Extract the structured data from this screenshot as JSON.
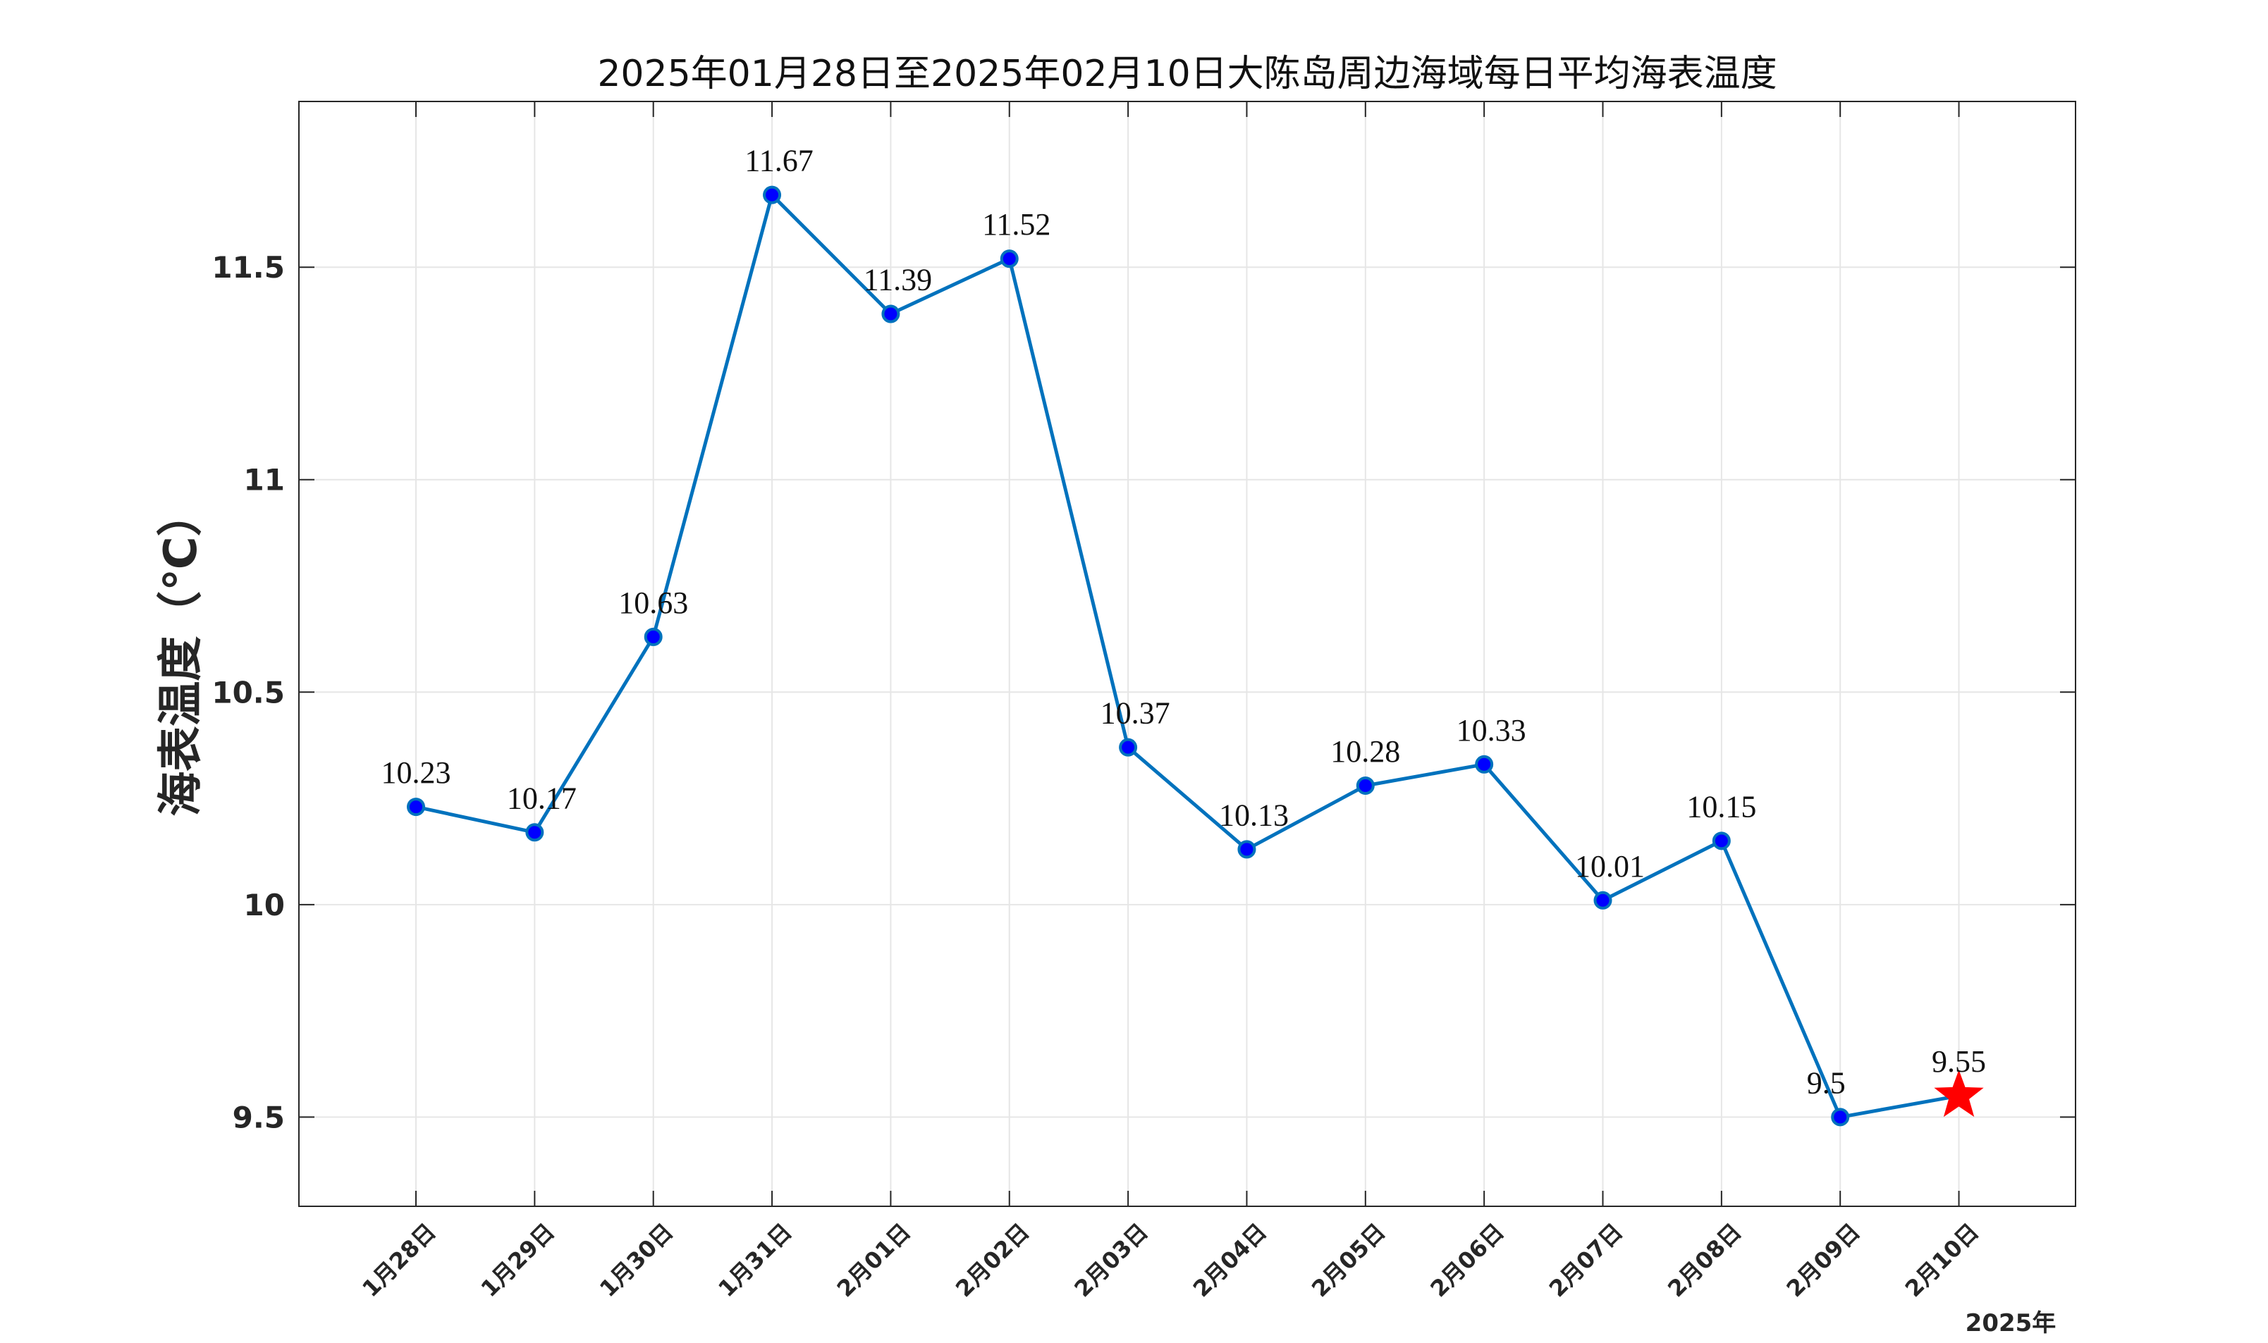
{
  "chart_data": {
    "type": "line",
    "title": "2025年01月28日至2025年02月10日大陈岛周边海域每日平均海表温度",
    "xlabel": "",
    "ylabel": "海表温度（℃）",
    "x_note": "2025年",
    "categories": [
      "1月28日",
      "1月29日",
      "1月30日",
      "1月31日",
      "2月01日",
      "2月02日",
      "2月03日",
      "2月04日",
      "2月05日",
      "2月06日",
      "2月07日",
      "2月08日",
      "2月09日",
      "2月10日"
    ],
    "values": [
      10.23,
      10.17,
      10.63,
      11.67,
      11.39,
      11.52,
      10.37,
      10.13,
      10.28,
      10.33,
      10.01,
      10.15,
      9.5,
      9.55
    ],
    "data_labels": [
      "10.23",
      "10.17",
      "10.63",
      "11.67",
      "11.39",
      "11.52",
      "10.37",
      "10.13",
      "10.28",
      "10.33",
      "10.01",
      "10.15",
      "9.5",
      "9.55"
    ],
    "ylim": [
      9.29,
      11.89
    ],
    "yticks": [
      9.5,
      10,
      10.5,
      11,
      11.5
    ],
    "ytick_labels": [
      "9.5",
      "10",
      "10.5",
      "11",
      "11.5"
    ],
    "grid": true,
    "legend": "none",
    "last_point_marker": "star",
    "colors": {
      "line": "#0072BD",
      "marker_fill": "#0000FF",
      "marker_edge": "#0072BD",
      "star": "#FF0000",
      "axis": "#262626",
      "grid": "#E6E6E6"
    }
  }
}
